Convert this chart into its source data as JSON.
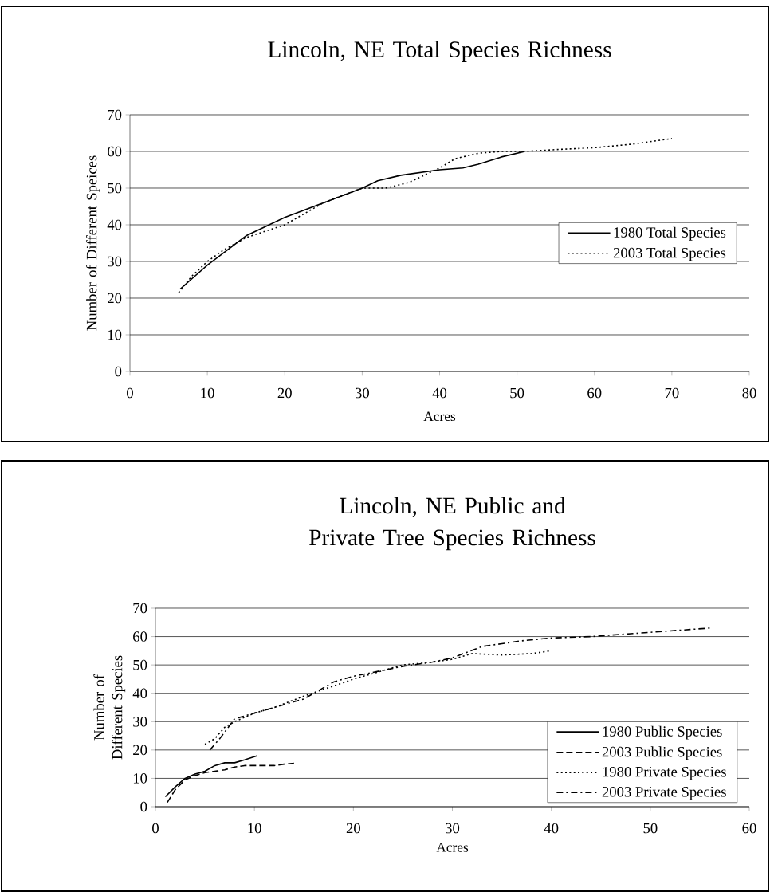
{
  "chart_data": [
    {
      "type": "line",
      "title": "Lincoln, NE Total Species Richness",
      "xlabel": "Acres",
      "ylabel": "Number of Different Speices",
      "xlim": [
        0,
        80
      ],
      "ylim": [
        0,
        70
      ],
      "xticks": [
        0,
        10,
        20,
        30,
        40,
        50,
        60,
        70,
        80
      ],
      "yticks": [
        0,
        10,
        20,
        30,
        40,
        50,
        60,
        70
      ],
      "grid": "y",
      "legend": "right",
      "series": [
        {
          "name": "1980 Total Species",
          "color": "#000000",
          "line_style": "solid",
          "x": [
            6.5,
            10,
            15,
            20,
            25,
            30,
            32,
            35,
            40,
            43,
            45,
            48,
            51
          ],
          "values": [
            22.5,
            29,
            37,
            42,
            46,
            50,
            52,
            53.5,
            55,
            55.5,
            56.5,
            58.5,
            60
          ]
        },
        {
          "name": "2003 Total Species",
          "color": "#000000",
          "line_style": "dotted",
          "x": [
            6.3,
            8,
            10,
            12,
            15,
            20,
            25,
            30,
            33,
            36,
            40,
            42,
            45,
            48,
            51,
            55,
            60,
            65,
            70
          ],
          "values": [
            21.5,
            26,
            30,
            33,
            36.5,
            40,
            46,
            50,
            50,
            51.5,
            55.5,
            58,
            59.5,
            60,
            60,
            60.5,
            61,
            62,
            63.5
          ]
        }
      ]
    },
    {
      "type": "line",
      "title": "Lincoln, NE Public and Private Tree Species Richness",
      "xlabel": "Acres",
      "ylabel": "Number of Different Species",
      "xlim": [
        0,
        60
      ],
      "ylim": [
        0,
        70
      ],
      "xticks": [
        0,
        10,
        20,
        30,
        40,
        50,
        60
      ],
      "yticks": [
        0,
        10,
        20,
        30,
        40,
        50,
        60,
        70
      ],
      "grid": "y",
      "legend": "bottom right",
      "series": [
        {
          "name": "1980 Public Species",
          "color": "#000000",
          "line_style": "solid",
          "x": [
            1,
            2,
            3,
            4,
            5,
            6,
            7,
            8,
            9,
            10.3
          ],
          "values": [
            3.5,
            7,
            10,
            11.5,
            12.5,
            14.5,
            15.5,
            15.5,
            16.5,
            18
          ]
        },
        {
          "name": "2003 Public Species",
          "color": "#000000",
          "line_style": "dashed",
          "x": [
            1.2,
            2,
            3,
            4,
            5,
            6,
            7,
            8,
            9,
            10,
            12,
            13,
            14
          ],
          "values": [
            1.5,
            6,
            9.5,
            11,
            12,
            12.5,
            13,
            14,
            14.5,
            14.5,
            14.5,
            15,
            15.3
          ]
        },
        {
          "name": "1980 Private Species",
          "color": "#000000",
          "line_style": "dotted",
          "x": [
            5,
            6,
            7,
            8,
            10,
            12,
            15,
            20,
            25,
            28,
            30,
            32,
            35,
            38,
            40
          ],
          "values": [
            22,
            24,
            28,
            30,
            33,
            35,
            39,
            45,
            50,
            51,
            52,
            54,
            53.5,
            54,
            55
          ]
        },
        {
          "name": "2003 Private Species",
          "color": "#000000",
          "line_style": "dashdot",
          "x": [
            5.5,
            6.5,
            8,
            10,
            13,
            15,
            18,
            20,
            25,
            28,
            30,
            33,
            35,
            37,
            40,
            44,
            48,
            52,
            56
          ],
          "values": [
            20,
            24,
            31,
            33,
            36,
            38,
            44,
            46,
            49.5,
            51,
            52.5,
            56.5,
            57.5,
            58.5,
            59.5,
            60,
            61,
            62,
            63
          ]
        }
      ]
    }
  ]
}
